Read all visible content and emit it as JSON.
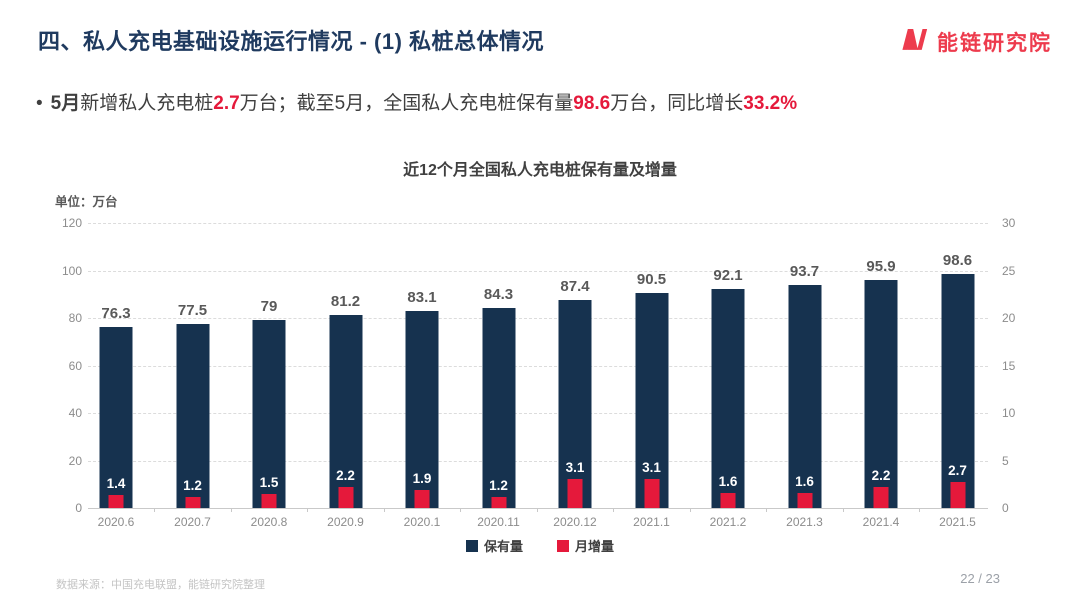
{
  "header": {
    "title": "四、私人充电基础设施运行情况  - (1) 私桩总体情况",
    "logo_text": "能链研究院",
    "logo_color": "#ED3B4D",
    "title_color": "#1F3A5F"
  },
  "bullet": {
    "marker": "•",
    "seg_month": "5月",
    "seg1": "新增私人充电桩",
    "val1": "2.7",
    "seg2": "万台；截至5月，全国私人充电桩保有量",
    "val2": "98.6",
    "seg3": "万台，同比增长",
    "val3": "33.2%"
  },
  "chart": {
    "title": "近12个月全国私人充电桩保有量及增量",
    "unit_label": "单位：万台"
  },
  "chart_data": {
    "type": "bar",
    "title": "近12个月全国私人充电桩保有量及增量",
    "categories": [
      "2020.6",
      "2020.7",
      "2020.8",
      "2020.9",
      "2020.1",
      "2020.11",
      "2020.12",
      "2021.1",
      "2021.2",
      "2021.3",
      "2021.4",
      "2021.5"
    ],
    "series": [
      {
        "name": "保有量",
        "axis": "left",
        "color": "#16324F",
        "values": [
          76.3,
          77.5,
          79,
          81.2,
          83.1,
          84.3,
          87.4,
          90.5,
          92.1,
          93.7,
          95.9,
          98.6
        ]
      },
      {
        "name": "月增量",
        "axis": "right",
        "color": "#E5193B",
        "values": [
          1.4,
          1.2,
          1.5,
          2.2,
          1.9,
          1.2,
          3.1,
          3.1,
          1.6,
          1.6,
          2.2,
          2.7
        ]
      }
    ],
    "left_axis": {
      "min": 0,
      "max": 120,
      "step": 20,
      "ticks": [
        0,
        20,
        40,
        60,
        80,
        100,
        120
      ]
    },
    "right_axis": {
      "min": 0,
      "max": 30,
      "step": 5,
      "ticks": [
        0,
        5,
        10,
        15,
        20,
        25,
        30
      ]
    },
    "grid": "horizontal-dashed",
    "legend_position": "bottom"
  },
  "footer": {
    "source": "数据来源：中国充电联盟，能链研究院整理",
    "page": "22 / 23"
  }
}
